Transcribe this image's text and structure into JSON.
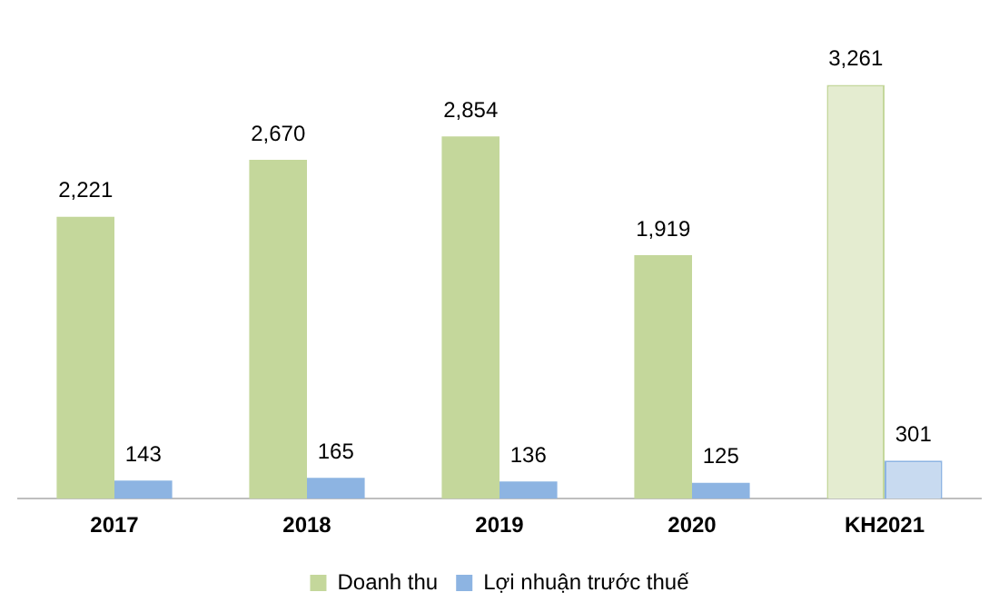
{
  "chart_data": {
    "type": "bar",
    "categories": [
      "2017",
      "2018",
      "2019",
      "2020",
      "KH2021"
    ],
    "series": [
      {
        "name": "Doanh thu",
        "color": "#c4d79b",
        "colors": [
          "#c4d79b",
          "#c4d79b",
          "#c4d79b",
          "#c4d79b",
          "#e4ecd0"
        ],
        "values": [
          2221,
          2670,
          2854,
          1919,
          3261
        ],
        "value_labels": [
          "2,221",
          "2,670",
          "2,854",
          "1,919",
          "3,261"
        ]
      },
      {
        "name": "Lợi nhuận trước thuế",
        "color": "#8db4e2",
        "colors": [
          "#8db4e2",
          "#8db4e2",
          "#8db4e2",
          "#8db4e2",
          "#c8daf0"
        ],
        "values": [
          143,
          165,
          136,
          125,
          301
        ],
        "value_labels": [
          "143",
          "165",
          "136",
          "125",
          "301"
        ]
      }
    ],
    "legend": "bottom",
    "grid": false
  }
}
